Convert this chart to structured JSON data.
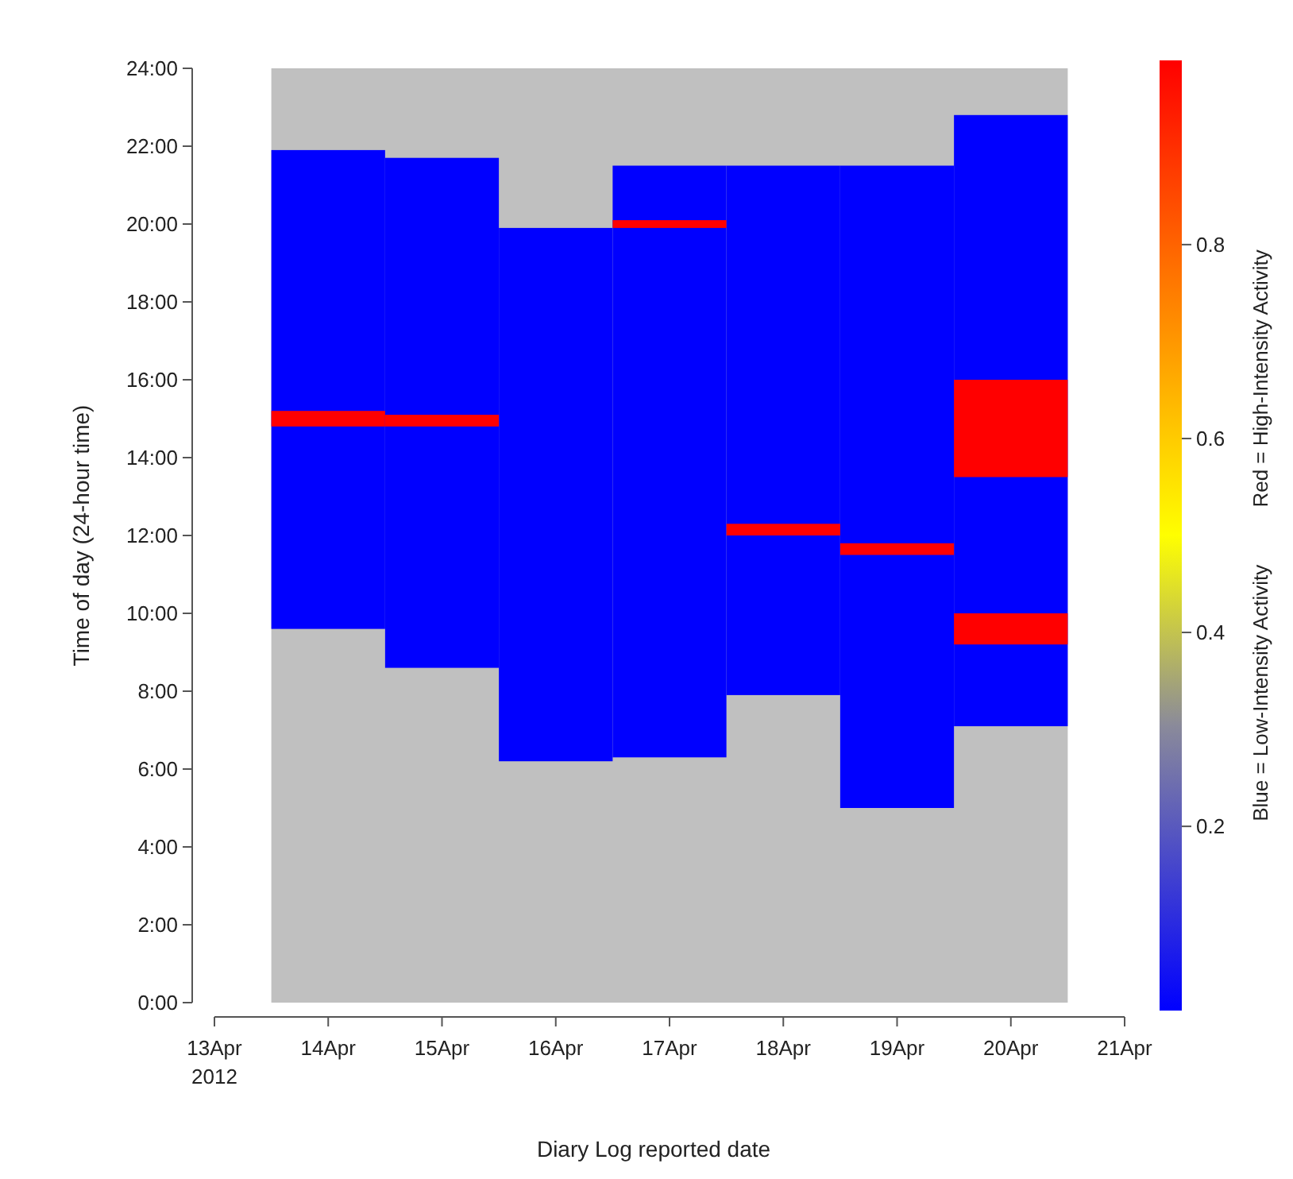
{
  "chart_data": {
    "type": "bar",
    "xlabel": "Diary Log reported date",
    "ylabel": "Time of day (24-hour time)",
    "clabel": "Blue = Low-Intensity Activity          Red = High-Intensity Activity",
    "x": [
      "2012-04-14",
      "2012-04-15",
      "2012-04-16",
      "2012-04-17",
      "2012-04-18",
      "2012-04-19",
      "2012-04-20"
    ],
    "series": [
      {
        "color": "#0000ff",
        "base": [
          9.6,
          8.6,
          6.2,
          6.3,
          7.9,
          5.0,
          7.1
        ],
        "values": [
          12.3,
          13.1,
          13.7,
          15.2,
          13.6,
          16.5,
          15.7
        ]
      },
      {
        "color": "#ff0000",
        "base": [
          14.8,
          14.8,
          null,
          19.9,
          12.0,
          11.5,
          13.5
        ],
        "values": [
          0.4,
          0.3,
          null,
          0.2,
          0.3,
          0.3,
          2.5
        ]
      },
      {
        "color": "#ff0000",
        "base": [
          null,
          null,
          null,
          null,
          null,
          null,
          9.2
        ],
        "values": [
          null,
          null,
          null,
          null,
          null,
          null,
          0.8
        ]
      }
    ],
    "xlim": [
      "2012-04-13",
      "2012-04-21"
    ],
    "xticks": [
      {
        "value": "2012-04-13",
        "label": "13Apr\n2012"
      },
      {
        "value": "2012-04-14",
        "label": "14Apr"
      },
      {
        "value": "2012-04-15",
        "label": "15Apr"
      },
      {
        "value": "2012-04-16",
        "label": "16Apr"
      },
      {
        "value": "2012-04-17",
        "label": "17Apr"
      },
      {
        "value": "2012-04-18",
        "label": "18Apr"
      },
      {
        "value": "2012-04-19",
        "label": "19Apr"
      },
      {
        "value": "2012-04-20",
        "label": "20Apr"
      },
      {
        "value": "2012-04-21",
        "label": "21Apr"
      }
    ],
    "ylim": [
      0,
      24
    ],
    "yticks": [
      {
        "value": 0,
        "label": "0:00"
      },
      {
        "value": 2,
        "label": "2:00"
      },
      {
        "value": 4,
        "label": "4:00"
      },
      {
        "value": 6,
        "label": "6:00"
      },
      {
        "value": 8,
        "label": "8:00"
      },
      {
        "value": 10,
        "label": "10:00"
      },
      {
        "value": 12,
        "label": "12:00"
      },
      {
        "value": 14,
        "label": "14:00"
      },
      {
        "value": 16,
        "label": "16:00"
      },
      {
        "value": 18,
        "label": "18:00"
      },
      {
        "value": 20,
        "label": "20:00"
      },
      {
        "value": 22,
        "label": "22:00"
      },
      {
        "value": 24,
        "label": "24:00"
      }
    ],
    "clim": [
      0.01,
      0.99
    ],
    "cticks": [
      0.2,
      0.4,
      0.6,
      0.8
    ],
    "bands": [
      {
        "axis": "x",
        "from": "2012-04-13T12:00",
        "to": "2012-04-20T12:00",
        "color": "#c0c0c0"
      }
    ],
    "grid": false
  }
}
